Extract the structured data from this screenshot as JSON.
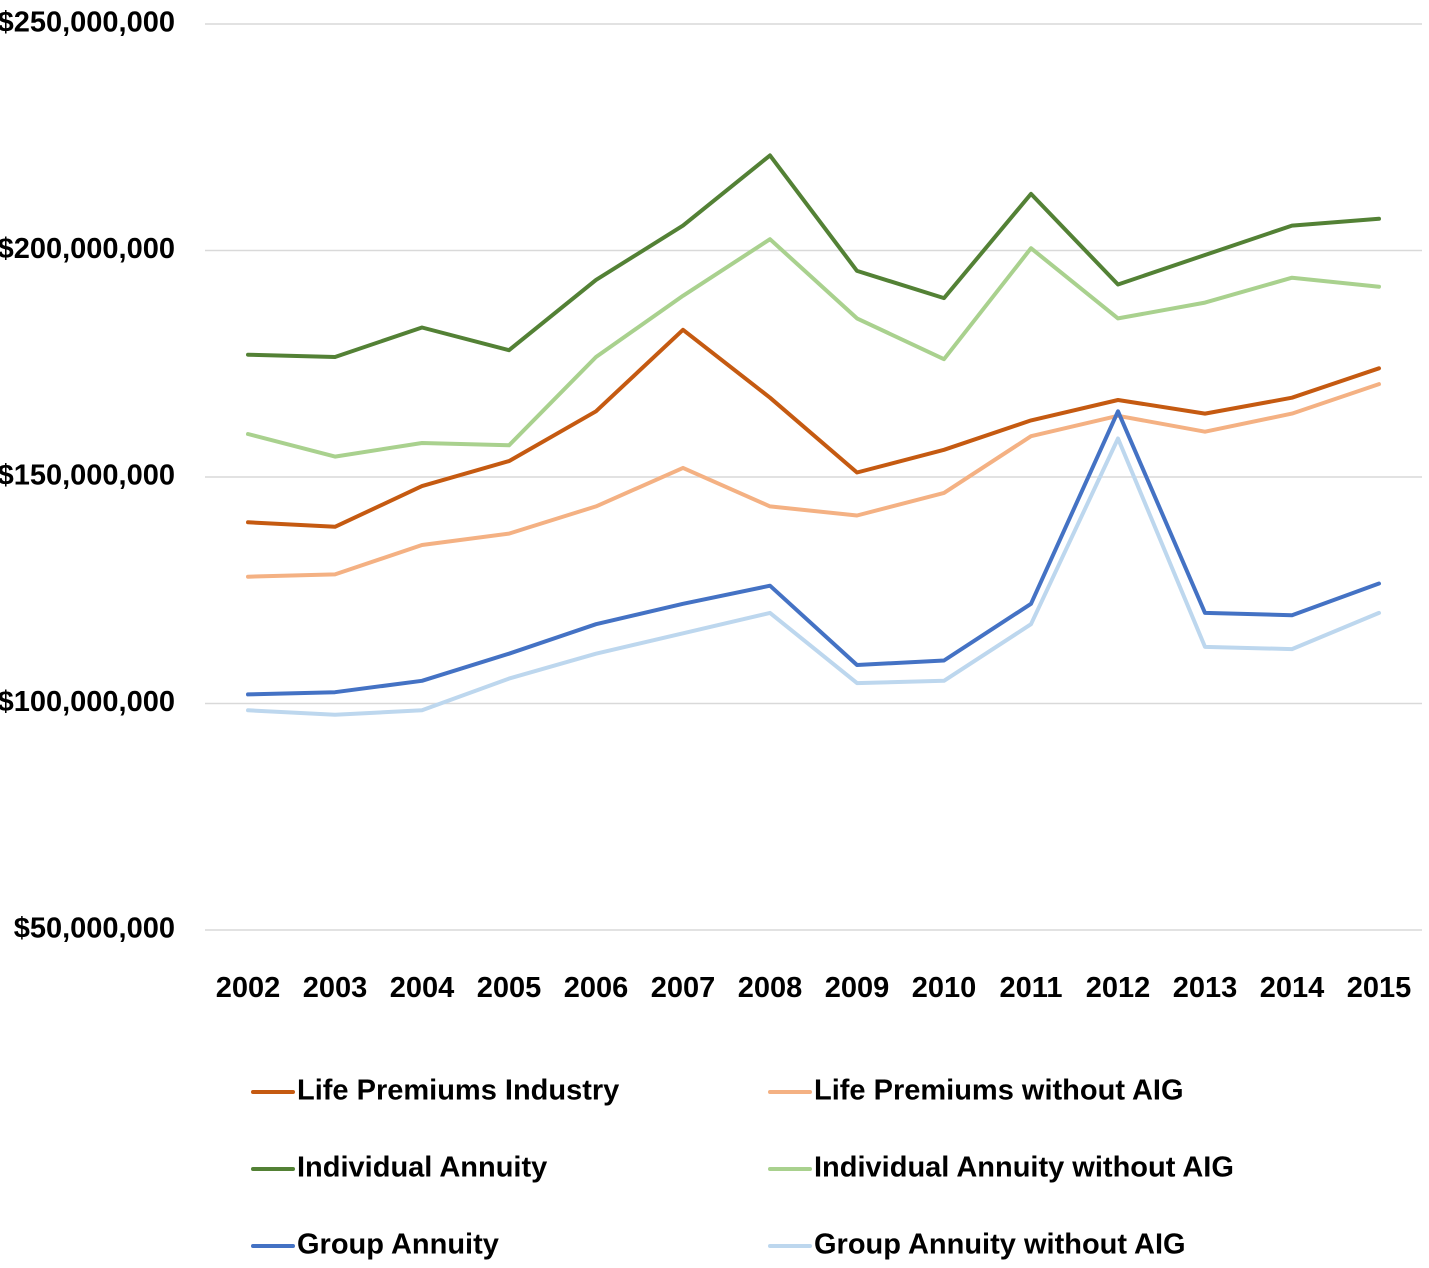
{
  "chart_data": {
    "type": "line",
    "title": "",
    "xlabel": "",
    "ylabel": "",
    "categories": [
      "2002",
      "2003",
      "2004",
      "2005",
      "2006",
      "2007",
      "2008",
      "2009",
      "2010",
      "2011",
      "2012",
      "2013",
      "2014",
      "2015"
    ],
    "ylim": [
      50000000,
      250000000
    ],
    "yticks": [
      50000000,
      100000000,
      150000000,
      200000000,
      250000000
    ],
    "ytick_labels": [
      "$50,000,000",
      "$100,000,000",
      "$150,000,000",
      "$200,000,000",
      "$250,000,000"
    ],
    "grid": true,
    "legend_position": "bottom",
    "series": [
      {
        "name": "Life Premiums Industry",
        "color": "#c55a11",
        "values": [
          140000000,
          139000000,
          148000000,
          153500000,
          164500000,
          182500000,
          167500000,
          151000000,
          156000000,
          162500000,
          167000000,
          164000000,
          167500000,
          174000000
        ]
      },
      {
        "name": "Life Premiums without AIG",
        "color": "#f4b183",
        "values": [
          128000000,
          128500000,
          135000000,
          137500000,
          143500000,
          152000000,
          143500000,
          141500000,
          146500000,
          159000000,
          163500000,
          160000000,
          164000000,
          170500000
        ]
      },
      {
        "name": "Individual Annuity",
        "color": "#538135",
        "values": [
          177000000,
          176500000,
          183000000,
          178000000,
          193500000,
          205500000,
          221000000,
          195500000,
          189500000,
          212500000,
          192500000,
          199000000,
          205500000,
          207000000
        ]
      },
      {
        "name": "Individual Annuity without AIG",
        "color": "#a9d18e",
        "values": [
          159500000,
          154500000,
          157500000,
          157000000,
          176500000,
          190000000,
          202500000,
          185000000,
          176000000,
          200500000,
          185000000,
          188500000,
          194000000,
          192000000
        ]
      },
      {
        "name": "Group Annuity",
        "color": "#4472c4",
        "values": [
          102000000,
          102500000,
          105000000,
          111000000,
          117500000,
          122000000,
          126000000,
          108500000,
          109500000,
          122000000,
          164500000,
          120000000,
          119500000,
          126500000
        ]
      },
      {
        "name": "Group Annuity without AIG",
        "color": "#bdd7ee",
        "values": [
          98500000,
          97500000,
          98500000,
          105500000,
          111000000,
          115500000,
          120000000,
          104500000,
          105000000,
          117500000,
          158500000,
          112500000,
          112000000,
          120000000
        ]
      }
    ],
    "legend_order": [
      0,
      1,
      2,
      3,
      4,
      5
    ]
  }
}
